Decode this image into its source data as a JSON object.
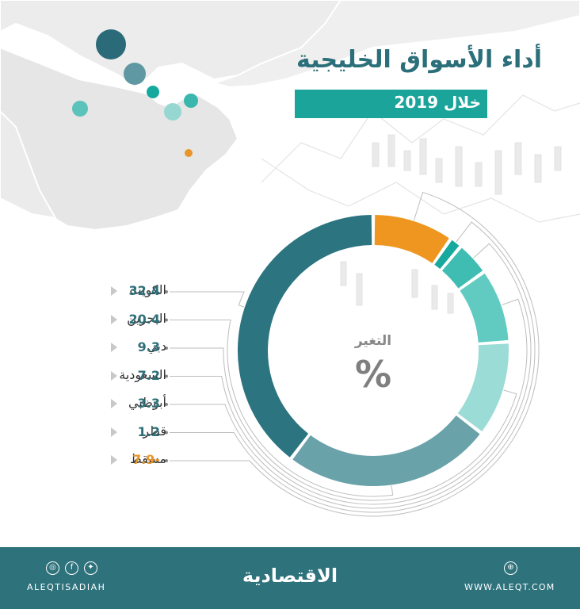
{
  "title": "أداء الأسواق الخليجية",
  "subtitle": "خلال 2019",
  "center_label": "التغير",
  "center_unit": "%",
  "colors": {
    "title": "#2b6f7a",
    "subtitle_bar": "#1aa49a",
    "positive_value": "#2e6f79",
    "negative_value": "#e8952a",
    "footer": "#2e727c"
  },
  "chart_data": {
    "type": "pie",
    "variant": "donut",
    "unit": "%",
    "slices": [
      {
        "label": "الكويت",
        "value": 32.4,
        "value_label": "32.4",
        "color": "#2b7480"
      },
      {
        "label": "البحرين",
        "value": 20.4,
        "value_label": "20.4",
        "color": "#6aa2aa"
      },
      {
        "label": "دبي",
        "value": 9.3,
        "value_label": "9.3",
        "color": "#9bdcd6"
      },
      {
        "label": "السعودية",
        "value": 7.2,
        "value_label": "7.2",
        "color": "#61cbc2"
      },
      {
        "label": "أبوظبي",
        "value": 3.3,
        "value_label": "3.3",
        "color": "#3fbdb2"
      },
      {
        "label": "قطر",
        "value": 1.2,
        "value_label": "1.2",
        "color": "#17a99d"
      },
      {
        "label": "مسقط",
        "value": -7.9,
        "value_label": "7.9-",
        "color": "#ee961f"
      }
    ]
  },
  "footer": {
    "brand": "الاقتصادية",
    "social_handle": "ALEQTISADIAH",
    "website": "WWW.ALEQT.COM",
    "icons": [
      "instagram-icon",
      "facebook-icon",
      "twitter-icon",
      "globe-icon"
    ]
  }
}
